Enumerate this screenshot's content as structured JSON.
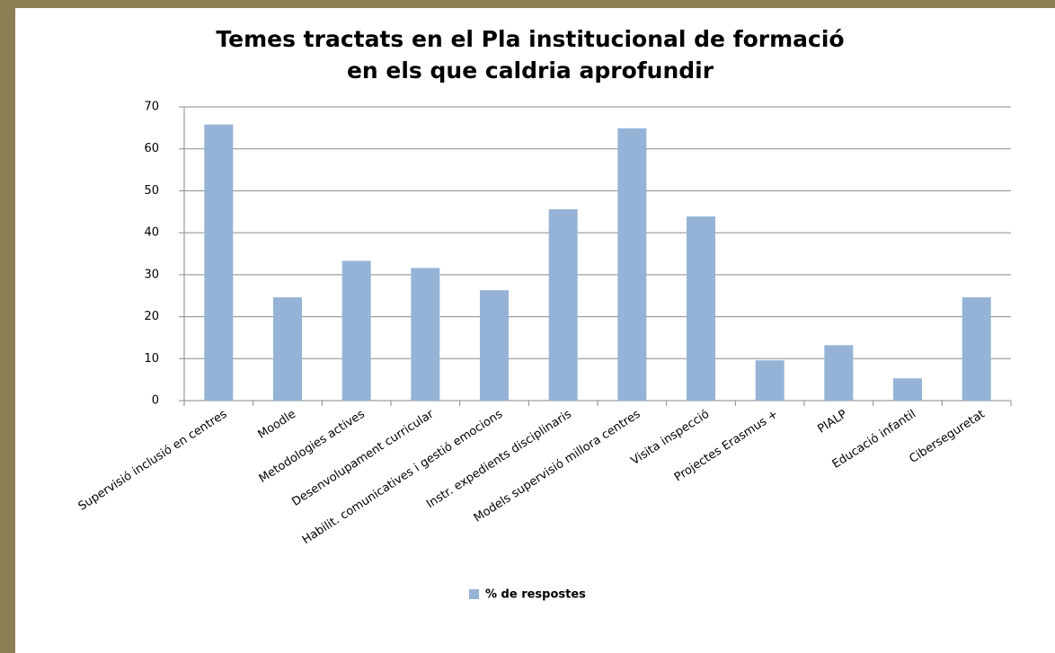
{
  "chart_data": {
    "type": "bar",
    "title": [
      "Temes tractats en el Pla institucional de formació",
      "en els que caldria aprofundir"
    ],
    "categories": [
      "Supervisió inclusió en centres",
      "Moodle",
      "Metodologies actives",
      "Desenvolupament curricular",
      "Habilit. comunicatives i gestió emocions",
      "Instr. expedients disciplinaris",
      "Models supervisió millora centres",
      "Visita inspecció",
      "Projectes Erasmus +",
      "PIALP",
      "Educació infantil",
      "Ciberseguretat"
    ],
    "series": [
      {
        "name": "% de respostes",
        "color": "#95b3d7",
        "values": [
          65.8,
          24.6,
          33.3,
          31.6,
          26.3,
          45.6,
          64.9,
          43.9,
          9.6,
          13.2,
          5.3,
          24.6
        ]
      }
    ],
    "ylim": [
      0,
      70
    ],
    "yticks": [
      0,
      10,
      20,
      30,
      40,
      50,
      60,
      70
    ],
    "grid": true,
    "legend": "bottom"
  }
}
